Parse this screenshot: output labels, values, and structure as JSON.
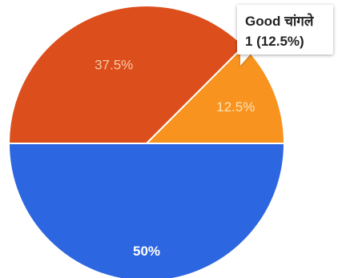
{
  "chart_data": {
    "type": "pie",
    "slices": [
      {
        "label": "50%",
        "value": 50,
        "color": "#2c66e0"
      },
      {
        "label": "37.5%",
        "value": 37.5,
        "color": "#dc4f1c"
      },
      {
        "label": "12.5%",
        "value": 12.5,
        "color": "#f7931e"
      }
    ],
    "tooltip": {
      "category": "Good चांगले",
      "count_text": "1 (12.5%)"
    }
  }
}
